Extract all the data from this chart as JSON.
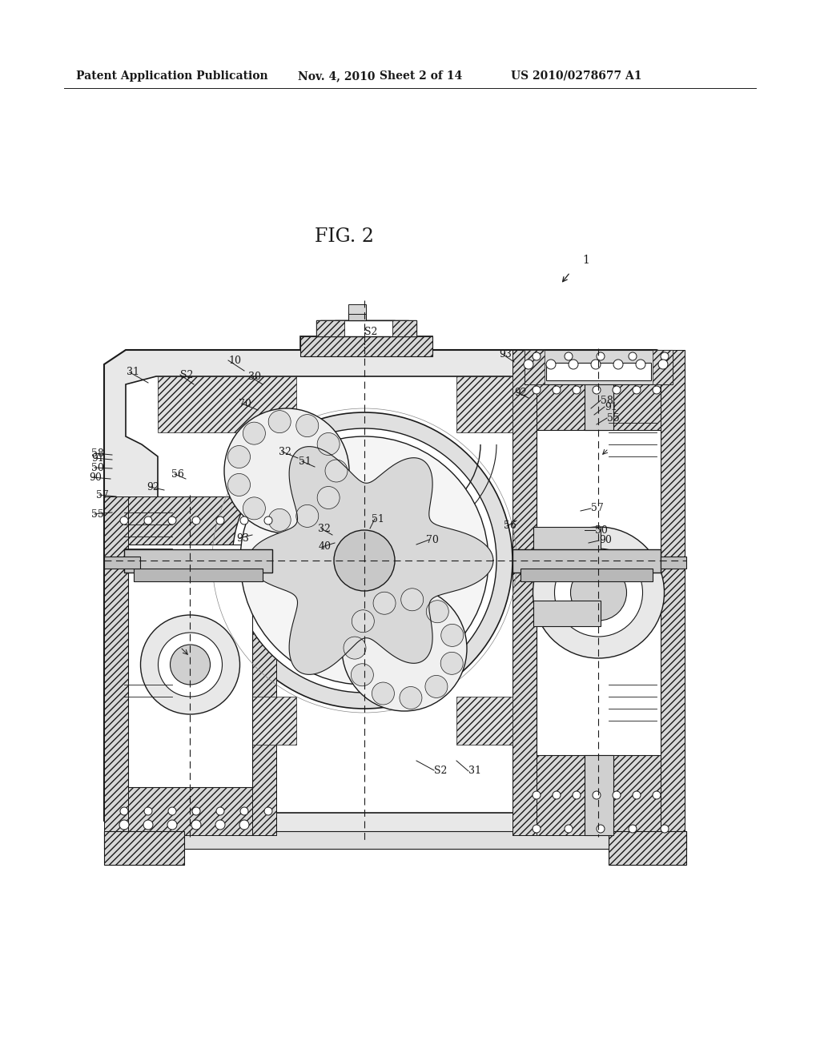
{
  "bg_color": "#ffffff",
  "lc": "#1a1a1a",
  "header_left": "Patent Application Publication",
  "header_mid1": "Nov. 4, 2010",
  "header_mid2": "Sheet 2 of 14",
  "header_right": "US 2010/0278677 A1",
  "fig_label": "FIG. 2",
  "ref1_label": "1",
  "labels": [
    [
      "S2",
      455,
      415
    ],
    [
      "S2",
      225,
      468
    ],
    [
      "S2",
      542,
      962
    ],
    [
      "10",
      285,
      450
    ],
    [
      "30",
      310,
      470
    ],
    [
      "31",
      158,
      465
    ],
    [
      "31",
      585,
      963
    ],
    [
      "32",
      348,
      564
    ],
    [
      "32",
      397,
      660
    ],
    [
      "40",
      398,
      683
    ],
    [
      "50",
      114,
      584
    ],
    [
      "50",
      743,
      662
    ],
    [
      "51",
      373,
      576
    ],
    [
      "51",
      464,
      648
    ],
    [
      "55",
      758,
      522
    ],
    [
      "55",
      114,
      642
    ],
    [
      "56",
      214,
      592
    ],
    [
      "56",
      629,
      657
    ],
    [
      "57",
      120,
      618
    ],
    [
      "57",
      738,
      635
    ],
    [
      "58",
      114,
      566
    ],
    [
      "58",
      750,
      500
    ],
    [
      "70",
      298,
      504
    ],
    [
      "70",
      532,
      674
    ],
    [
      "90",
      111,
      596
    ],
    [
      "90",
      748,
      675
    ],
    [
      "91",
      114,
      572
    ],
    [
      "91",
      755,
      508
    ],
    [
      "92",
      183,
      608
    ],
    [
      "92",
      642,
      490
    ],
    [
      "93",
      623,
      442
    ],
    [
      "93",
      295,
      672
    ]
  ]
}
